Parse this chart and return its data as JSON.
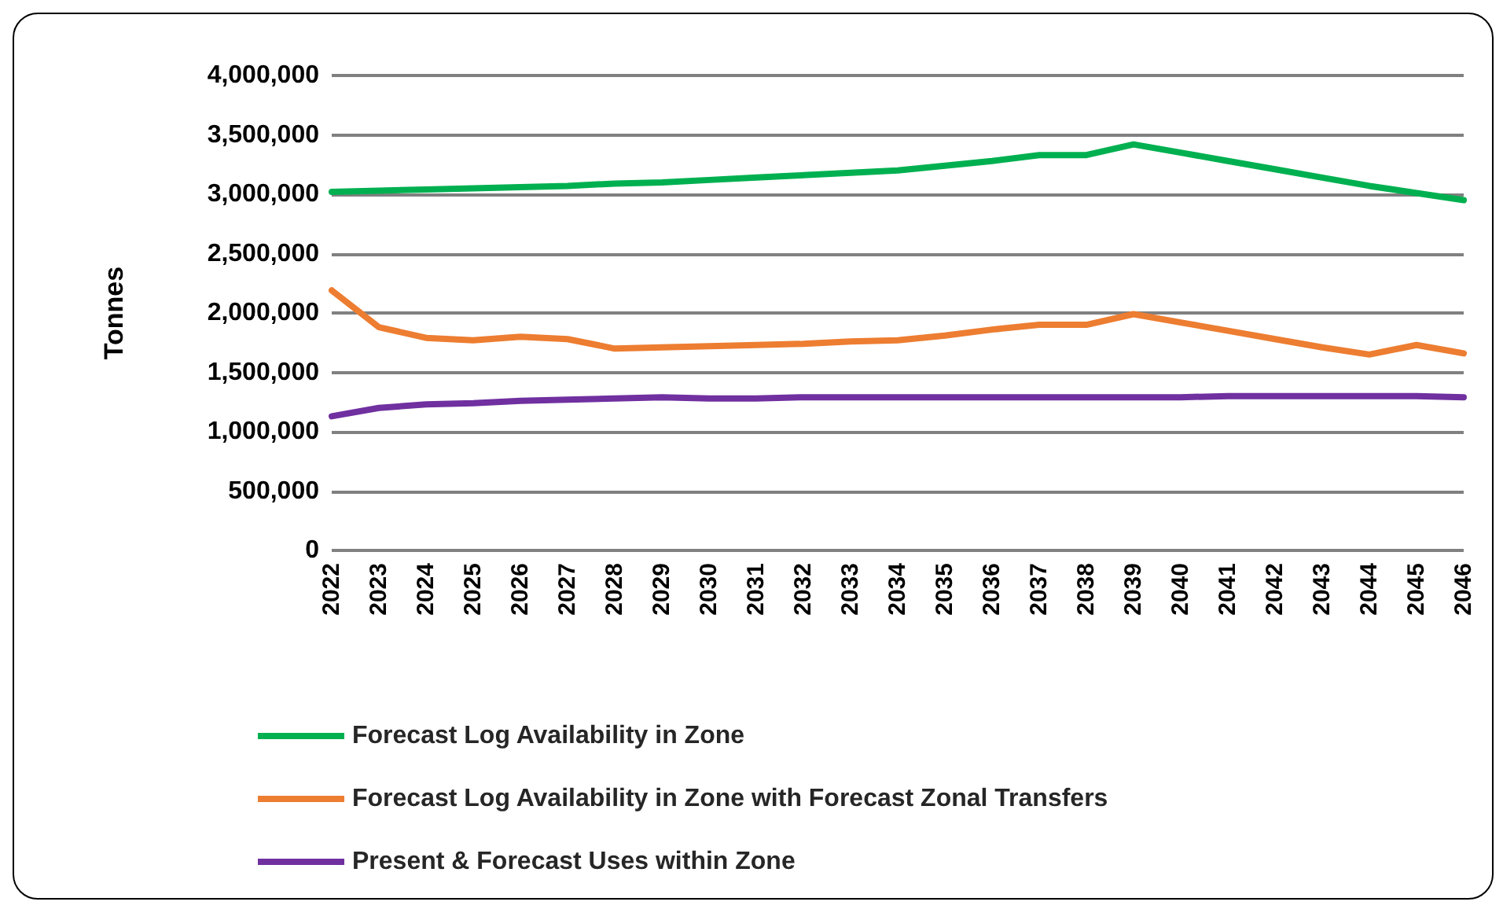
{
  "chart_data": {
    "type": "line",
    "ylabel": "Tonnes",
    "categories": [
      "2022",
      "2023",
      "2024",
      "2025",
      "2026",
      "2027",
      "2028",
      "2029",
      "2030",
      "2031",
      "2032",
      "2033",
      "2034",
      "2035",
      "2036",
      "2037",
      "2038",
      "2039",
      "2040",
      "2041",
      "2042",
      "2043",
      "2044",
      "2045",
      "2046"
    ],
    "series": [
      {
        "name": "Forecast Log Availability in Zone",
        "color": "#00b050",
        "values": [
          3020000,
          3030000,
          3040000,
          3050000,
          3060000,
          3070000,
          3090000,
          3100000,
          3120000,
          3140000,
          3160000,
          3180000,
          3200000,
          3240000,
          3280000,
          3330000,
          3330000,
          3420000,
          3350000,
          3280000,
          3210000,
          3140000,
          3070000,
          3010000,
          2950000
        ]
      },
      {
        "name": "Forecast Log Availability in Zone with Forecast Zonal Transfers",
        "color": "#ed7d31",
        "values": [
          2190000,
          1880000,
          1790000,
          1770000,
          1800000,
          1780000,
          1700000,
          1710000,
          1720000,
          1730000,
          1740000,
          1760000,
          1770000,
          1810000,
          1860000,
          1900000,
          1900000,
          1990000,
          1920000,
          1850000,
          1780000,
          1710000,
          1650000,
          1730000,
          1660000
        ]
      },
      {
        "name": "Present & Forecast Uses within Zone",
        "color": "#7030a0",
        "values": [
          1130000,
          1200000,
          1230000,
          1240000,
          1260000,
          1270000,
          1280000,
          1290000,
          1280000,
          1280000,
          1290000,
          1290000,
          1290000,
          1290000,
          1290000,
          1290000,
          1290000,
          1290000,
          1290000,
          1300000,
          1300000,
          1300000,
          1300000,
          1300000,
          1290000
        ]
      }
    ],
    "ylim": [
      0,
      4000000
    ],
    "yticks": [
      0,
      {
        "value": 500000,
        "label": "500,000"
      },
      {
        "value": 1000000,
        "label": "1,000,000"
      },
      {
        "value": 1500000,
        "label": "1,500,000"
      },
      {
        "value": 2000000,
        "label": "2,000,000"
      },
      {
        "value": 2500000,
        "label": "2,500,000"
      },
      {
        "value": 3000000,
        "label": "3,000,000"
      },
      {
        "value": 3500000,
        "label": "3,500,000"
      },
      {
        "value": 4000000,
        "label": "4,000,000"
      }
    ],
    "grid": "y",
    "legend": "bottom",
    "marker": "none",
    "line_style": "solid"
  }
}
